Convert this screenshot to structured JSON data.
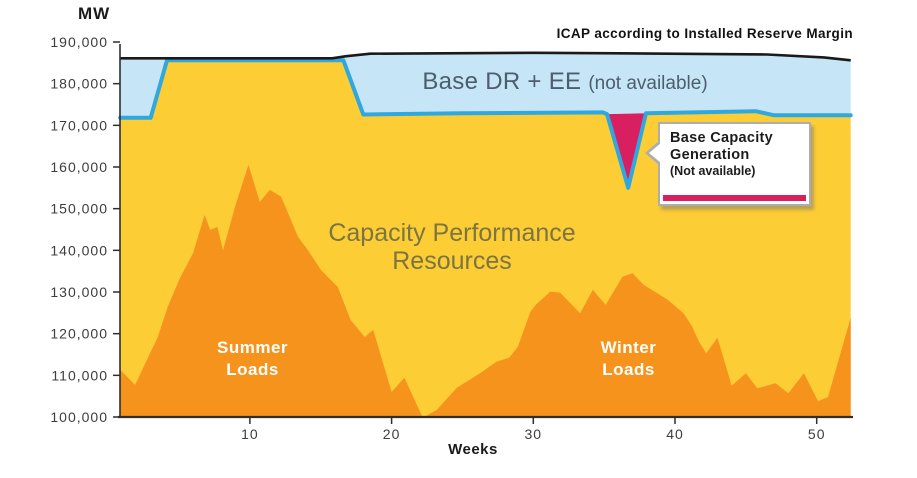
{
  "colors": {
    "yellow_area": "#FCCD34",
    "orange_area": "#F5931D",
    "band_fill": "#C6E6F7",
    "blue_line": "#2FA8DF",
    "black_line": "#1A1A1A",
    "pink": "#D81F60",
    "axis": "#2E2E2E",
    "tick_text": "#3D3D3D",
    "capacity_text": "#7C7442",
    "basedr_text": "#4E5D6D"
  },
  "labels": {
    "y_unit": "MW",
    "x_axis": "Weeks",
    "icap": "ICAP according to Installed Reserve Margin",
    "basedr_main": "Base DR + EE ",
    "basedr_sub": "(not available)",
    "capacity_line1": "Capacity Performance",
    "capacity_line2": "Resources",
    "summer_line1": "Summer",
    "summer_line2": "Loads",
    "winter_line1": "Winter",
    "winter_line2": "Loads",
    "callout_line1": "Base Capacity",
    "callout_line2": "Generation",
    "callout_line3": "(Not available)"
  },
  "chart_data": {
    "type": "area",
    "title": "",
    "xlabel": "Weeks",
    "ylabel": "MW",
    "xlim": [
      0.85,
      52.4
    ],
    "ylim": [
      100000,
      190000
    ],
    "grid": false,
    "legend": "none (labels annotated inside plot)",
    "x_ticks": [
      10,
      20,
      30,
      40,
      50
    ],
    "y_ticks": [
      {
        "value": 190000,
        "label": "190,000"
      },
      {
        "value": 180000,
        "label": "180,000"
      },
      {
        "value": 170000,
        "label": "170,000"
      },
      {
        "value": 160000,
        "label": "160,000"
      },
      {
        "value": 150000,
        "label": "150,000"
      },
      {
        "value": 140000,
        "label": "140,000"
      },
      {
        "value": 130000,
        "label": "130,000"
      },
      {
        "value": 120000,
        "label": "120,000"
      },
      {
        "value": 110000,
        "label": "110,000"
      },
      {
        "value": 100000,
        "label": "100,000"
      }
    ],
    "series": [
      {
        "name": "ICAP according to Installed Reserve Margin",
        "type": "line",
        "points": [
          [
            0.85,
            186100
          ],
          [
            15.8,
            186100
          ],
          [
            16.8,
            186600
          ],
          [
            18.5,
            187200
          ],
          [
            30,
            187400
          ],
          [
            36,
            187300
          ],
          [
            46.5,
            187000
          ],
          [
            50.5,
            186300
          ],
          [
            52.4,
            185600
          ]
        ]
      },
      {
        "name": "Base DR + EE (not available)",
        "type": "band",
        "description": "light blue band between the ICAP line and the Capacity Performance boundary"
      },
      {
        "name": "Capacity Performance Resources boundary",
        "type": "line",
        "points": [
          [
            0.85,
            171800
          ],
          [
            3.0,
            171800
          ],
          [
            4.15,
            185600
          ],
          [
            16.6,
            185600
          ],
          [
            18.0,
            172600
          ],
          [
            25,
            172900
          ],
          [
            34.9,
            173100
          ],
          [
            35.2,
            172700
          ],
          [
            36.7,
            155000
          ],
          [
            37.95,
            172900
          ],
          [
            45.7,
            173400
          ],
          [
            47.0,
            172400
          ],
          [
            52.4,
            172400
          ]
        ]
      },
      {
        "name": "Summer / Winter Loads",
        "type": "area",
        "points": [
          [
            0.85,
            111300
          ],
          [
            1.9,
            107700
          ],
          [
            3.5,
            119200
          ],
          [
            4.2,
            126400
          ],
          [
            5,
            132900
          ],
          [
            6,
            139400
          ],
          [
            6.8,
            148500
          ],
          [
            7.2,
            144900
          ],
          [
            7.7,
            145600
          ],
          [
            8.1,
            140000
          ],
          [
            9,
            151000
          ],
          [
            9.9,
            160500
          ],
          [
            10.7,
            151600
          ],
          [
            11.4,
            154500
          ],
          [
            12.2,
            152900
          ],
          [
            13.4,
            143200
          ],
          [
            14.1,
            140000
          ],
          [
            15,
            135300
          ],
          [
            15.7,
            132900
          ],
          [
            16.2,
            131200
          ],
          [
            17.1,
            123300
          ],
          [
            18.1,
            119200
          ],
          [
            18.7,
            120900
          ],
          [
            20,
            106000
          ],
          [
            20.9,
            109400
          ],
          [
            22.2,
            99800
          ],
          [
            23.2,
            101700
          ],
          [
            24.6,
            107000
          ],
          [
            26.3,
            110600
          ],
          [
            27.4,
            113300
          ],
          [
            28.3,
            114200
          ],
          [
            28.9,
            116800
          ],
          [
            29.8,
            125300
          ],
          [
            30.2,
            127000
          ],
          [
            31.2,
            130100
          ],
          [
            31.9,
            129800
          ],
          [
            33.3,
            124900
          ],
          [
            34.2,
            130500
          ],
          [
            35.1,
            126900
          ],
          [
            36.3,
            133700
          ],
          [
            37,
            134500
          ],
          [
            37.8,
            131700
          ],
          [
            38.6,
            130000
          ],
          [
            39.5,
            128100
          ],
          [
            40.6,
            124900
          ],
          [
            41.2,
            121800
          ],
          [
            41.7,
            118000
          ],
          [
            42.2,
            115300
          ],
          [
            43,
            119000
          ],
          [
            44,
            107500
          ],
          [
            45,
            110500
          ],
          [
            45.8,
            106900
          ],
          [
            47.1,
            108100
          ],
          [
            48,
            105700
          ],
          [
            49.1,
            110500
          ],
          [
            50.1,
            103800
          ],
          [
            50.8,
            104800
          ],
          [
            52.4,
            123800
          ]
        ]
      },
      {
        "name": "Base Capacity Generation (Not available) notch",
        "type": "area",
        "points": [
          [
            35.2,
            172700
          ],
          [
            36.7,
            155000
          ],
          [
            37.95,
            172900
          ]
        ]
      }
    ]
  }
}
